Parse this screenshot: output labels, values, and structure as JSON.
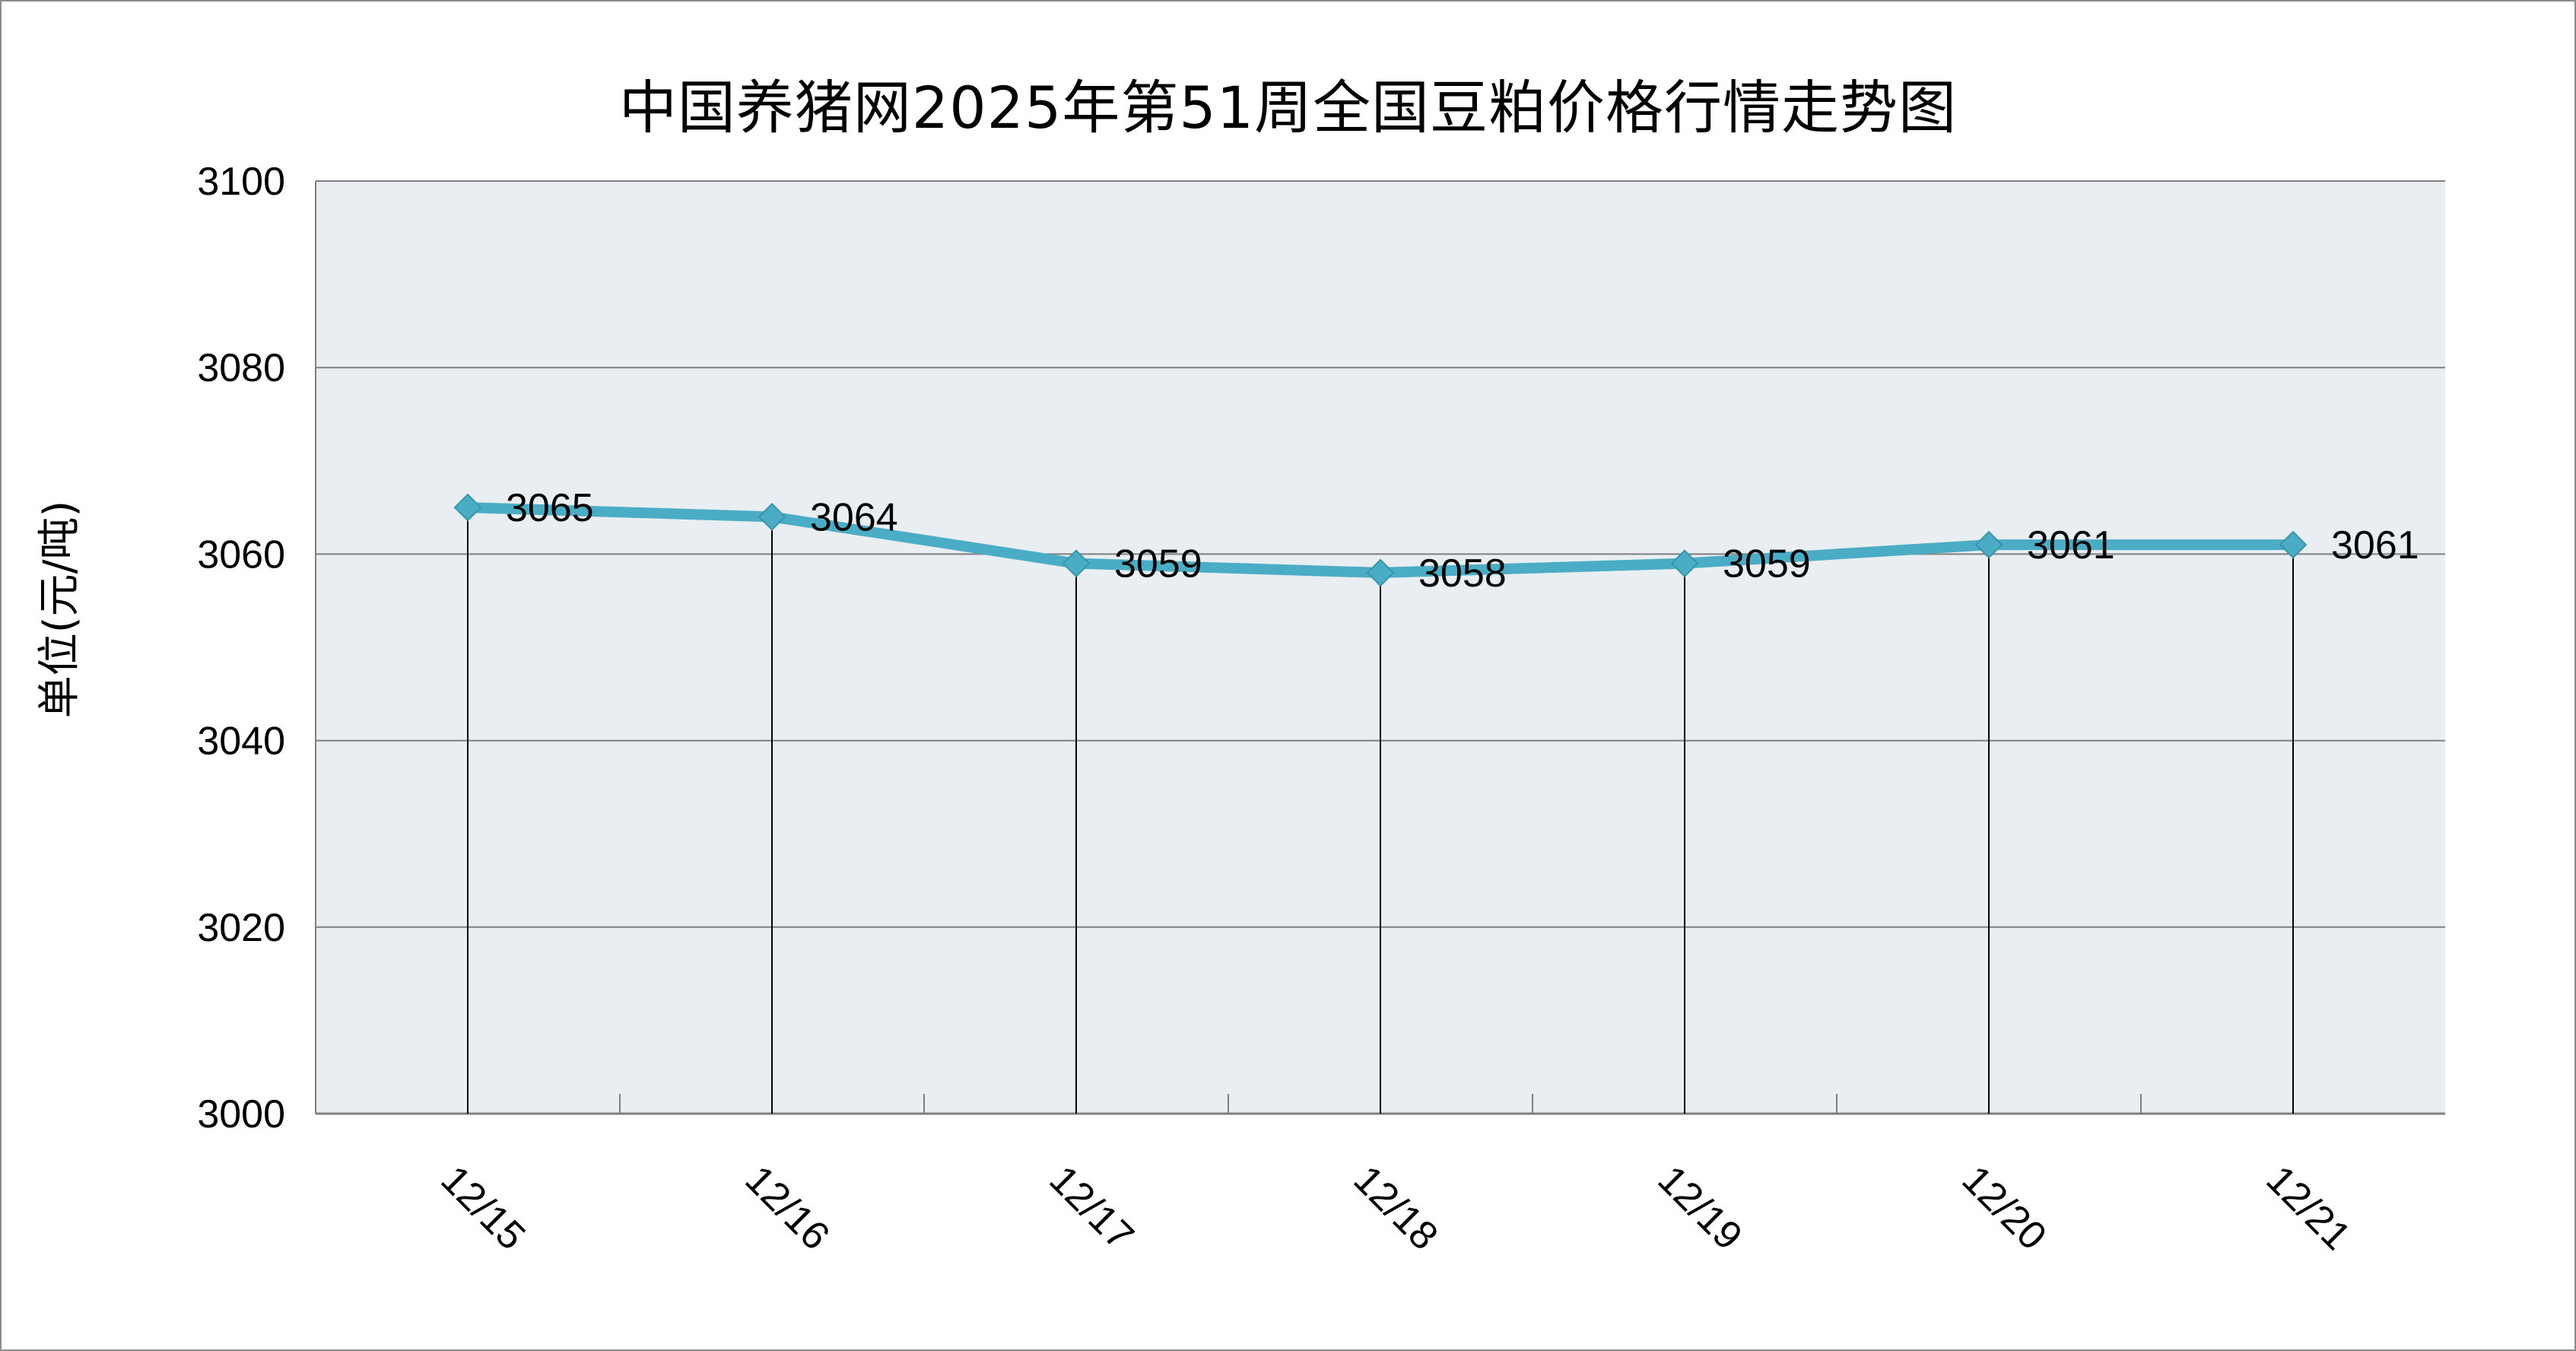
{
  "chart_data": {
    "type": "line",
    "title": "中国养猪网2025年第51周全国豆粕价格行情走势图",
    "xlabel": "",
    "ylabel": "单位(元/吨)",
    "categories": [
      "12/15",
      "12/16",
      "12/17",
      "12/18",
      "12/19",
      "12/20",
      "12/21"
    ],
    "series": [
      {
        "values": [
          3065,
          3064,
          3059,
          3058,
          3059,
          3061,
          3061
        ]
      }
    ],
    "data_labels": [
      "3065",
      "3064",
      "3059",
      "3058",
      "3059",
      "3061",
      "3061"
    ],
    "ylim": [
      3000,
      3100
    ],
    "yticks": [
      "3000",
      "3020",
      "3040",
      "3060",
      "3080",
      "3100"
    ],
    "grid": true,
    "drop_lines": true,
    "marker": "diamond",
    "colors": {
      "line": "#4bacc6",
      "plot_bg": "#e8eef2",
      "grid": "#7f7f7f"
    }
  }
}
